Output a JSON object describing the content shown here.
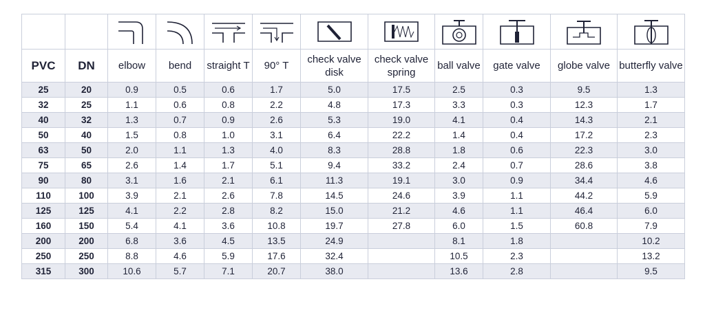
{
  "headers": [
    "PVC",
    "DN",
    "elbow",
    "bend",
    "straight T",
    "90° T",
    "check valve disk",
    "check valve spring",
    "ball valve",
    "gate valve",
    "globe valve",
    "butterfly valve"
  ],
  "icons": [
    "elbow-icon",
    "bend-icon",
    "straight-tee-icon",
    "ninety-degree-tee-icon",
    "check-valve-disk-icon",
    "check-valve-spring-icon",
    "ball-valve-icon",
    "gate-valve-icon",
    "globe-valve-icon",
    "butterfly-valve-icon"
  ],
  "rows": [
    [
      "25",
      "20",
      "0.9",
      "0.5",
      "0.6",
      "1.7",
      "5.0",
      "17.5",
      "2.5",
      "0.3",
      "9.5",
      "1.3"
    ],
    [
      "32",
      "25",
      "1.1",
      "0.6",
      "0.8",
      "2.2",
      "4.8",
      "17.3",
      "3.3",
      "0.3",
      "12.3",
      "1.7"
    ],
    [
      "40",
      "32",
      "1.3",
      "0.7",
      "0.9",
      "2.6",
      "5.3",
      "19.0",
      "4.1",
      "0.4",
      "14.3",
      "2.1"
    ],
    [
      "50",
      "40",
      "1.5",
      "0.8",
      "1.0",
      "3.1",
      "6.4",
      "22.2",
      "1.4",
      "0.4",
      "17.2",
      "2.3"
    ],
    [
      "63",
      "50",
      "2.0",
      "1.1",
      "1.3",
      "4.0",
      "8.3",
      "28.8",
      "1.8",
      "0.6",
      "22.3",
      "3.0"
    ],
    [
      "75",
      "65",
      "2.6",
      "1.4",
      "1.7",
      "5.1",
      "9.4",
      "33.2",
      "2.4",
      "0.7",
      "28.6",
      "3.8"
    ],
    [
      "90",
      "80",
      "3.1",
      "1.6",
      "2.1",
      "6.1",
      "11.3",
      "19.1",
      "3.0",
      "0.9",
      "34.4",
      "4.6"
    ],
    [
      "110",
      "100",
      "3.9",
      "2.1",
      "2.6",
      "7.8",
      "14.5",
      "24.6",
      "3.9",
      "1.1",
      "44.2",
      "5.9"
    ],
    [
      "125",
      "125",
      "4.1",
      "2.2",
      "2.8",
      "8.2",
      "15.0",
      "21.2",
      "4.6",
      "1.1",
      "46.4",
      "6.0"
    ],
    [
      "160",
      "150",
      "5.4",
      "4.1",
      "3.6",
      "10.8",
      "19.7",
      "27.8",
      "6.0",
      "1.5",
      "60.8",
      "7.9"
    ],
    [
      "200",
      "200",
      "6.8",
      "3.6",
      "4.5",
      "13.5",
      "24.9",
      "",
      "8.1",
      "1.8",
      "",
      "10.2"
    ],
    [
      "250",
      "250",
      "8.8",
      "4.6",
      "5.9",
      "17.6",
      "32.4",
      "",
      "10.5",
      "2.3",
      "",
      "13.2"
    ],
    [
      "315",
      "300",
      "10.6",
      "5.7",
      "7.1",
      "20.7",
      "38.0",
      "",
      "13.6",
      "2.8",
      "",
      "9.5"
    ]
  ],
  "colors": {
    "border": "#c9cedb",
    "shade": "#e8eaf1",
    "text": "#1f2236"
  }
}
